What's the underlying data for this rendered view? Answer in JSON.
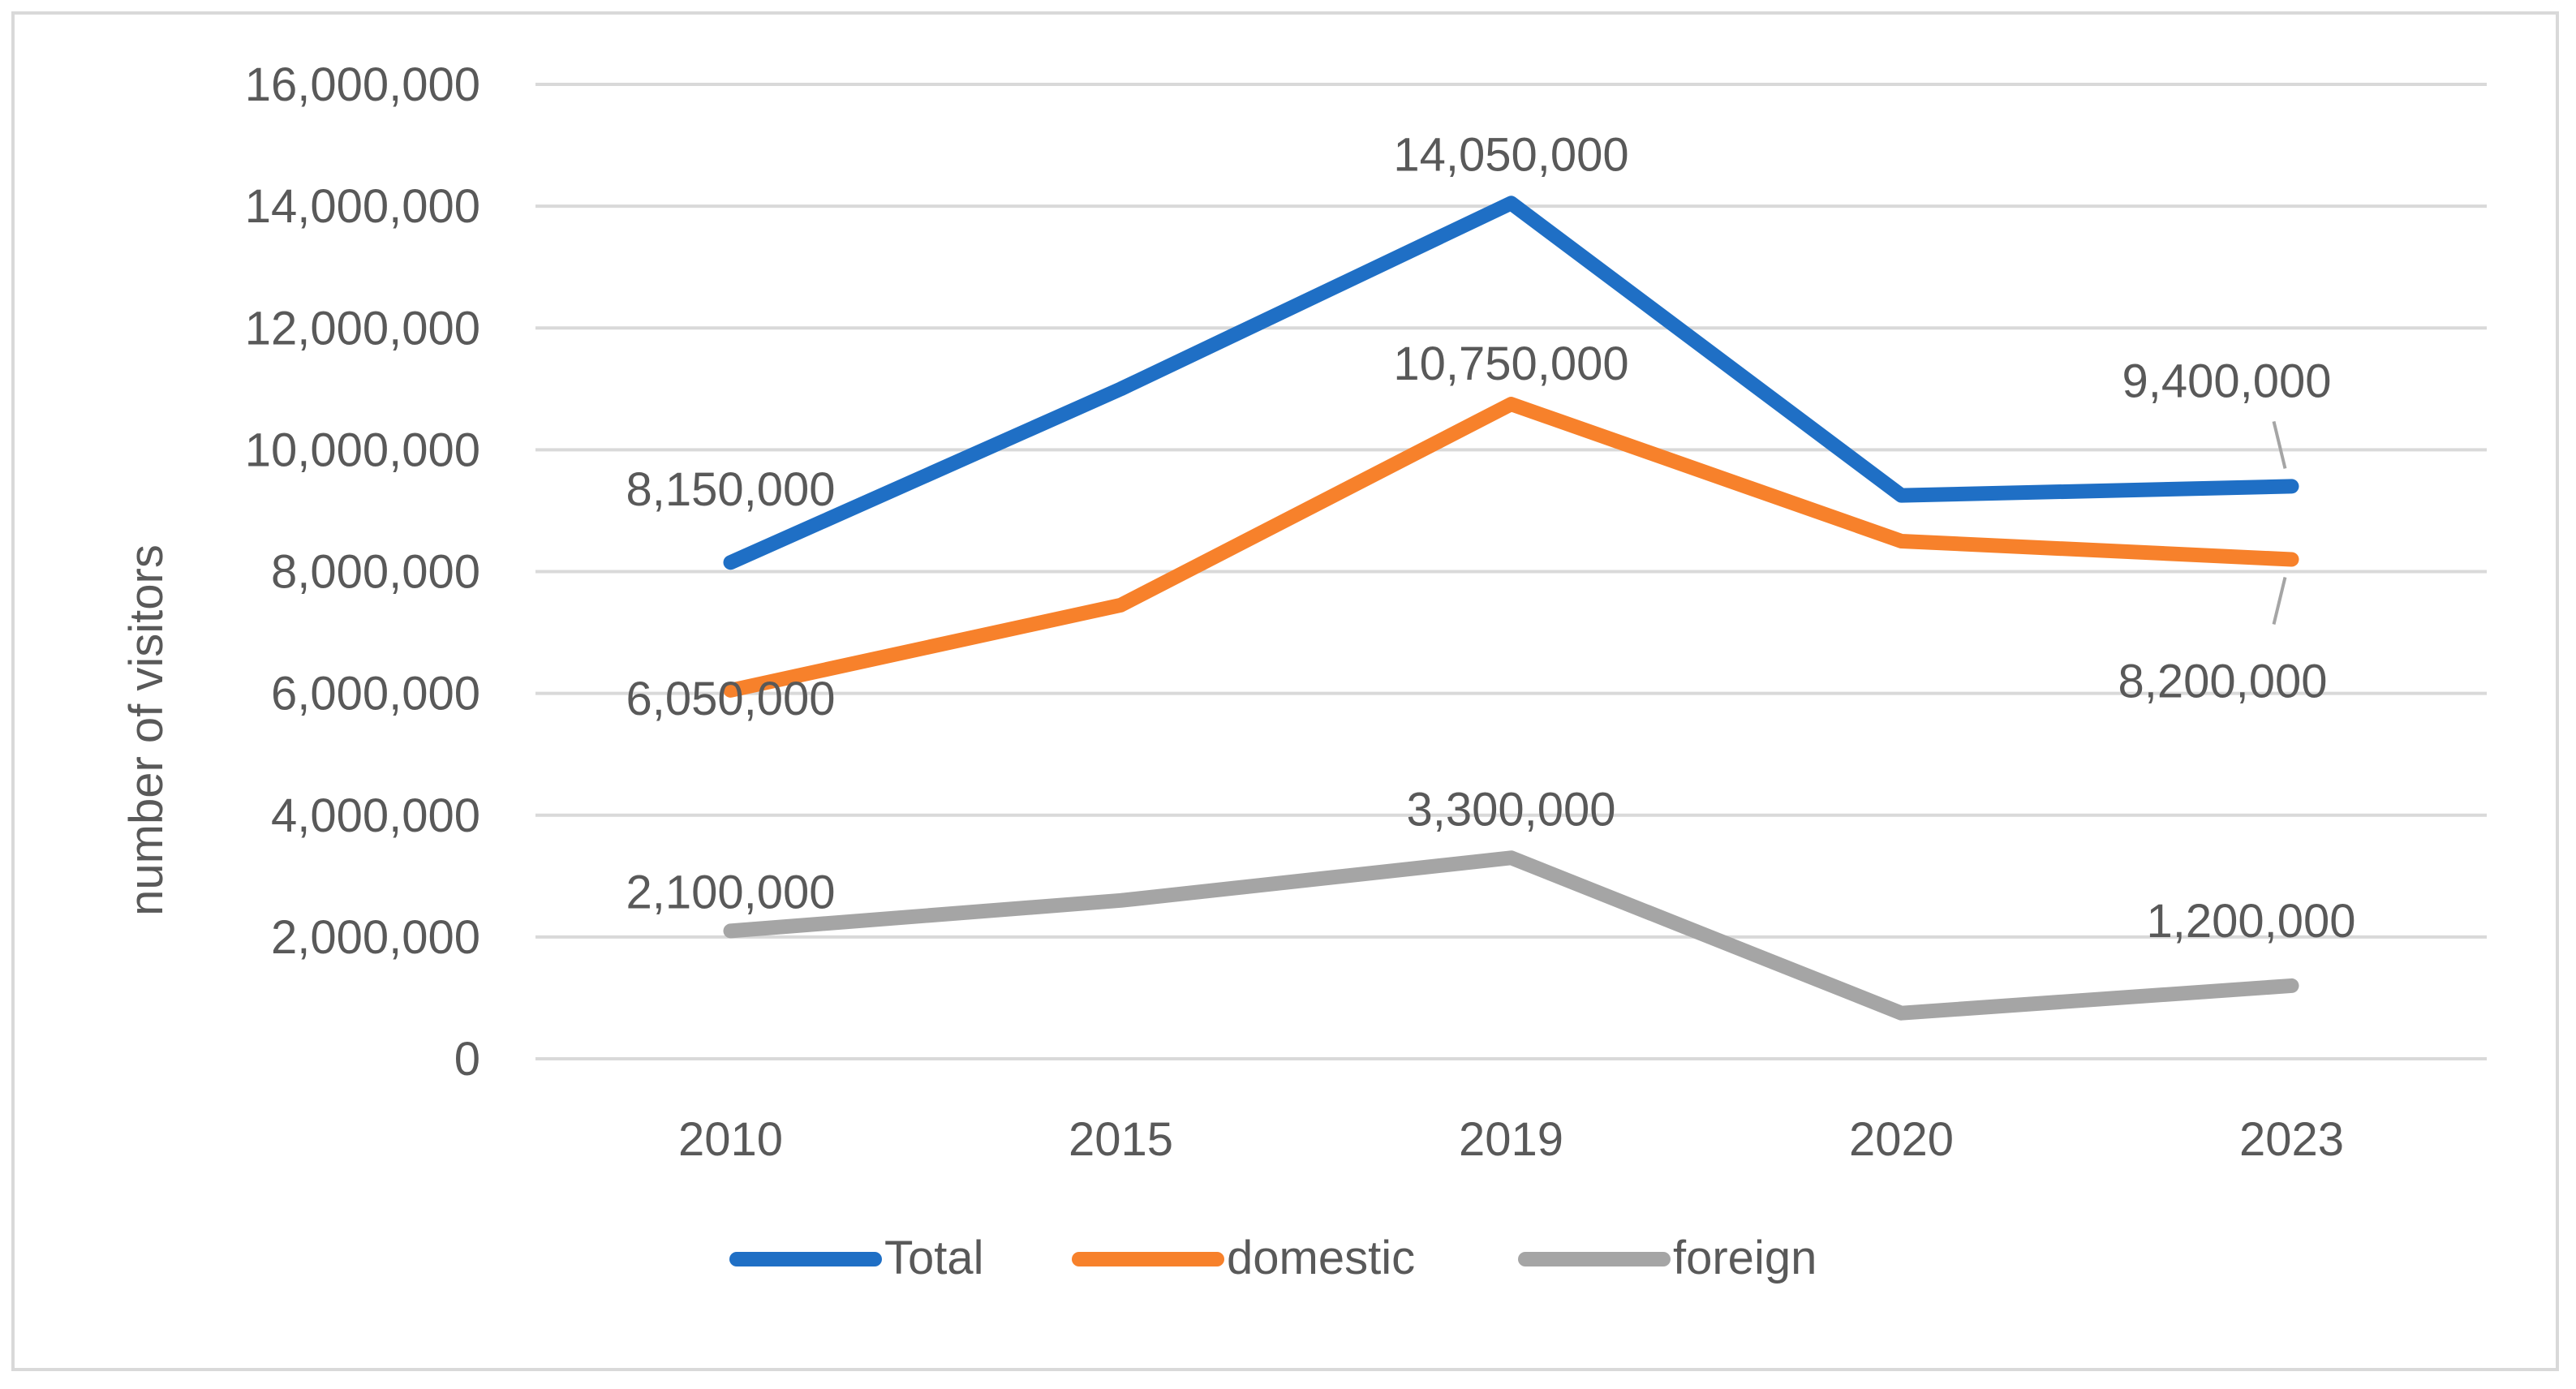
{
  "chart_data": {
    "type": "line",
    "title": "",
    "xlabel": "",
    "ylabel": "number of visitors",
    "categories": [
      "2010",
      "2015",
      "2019",
      "2020",
      "2023"
    ],
    "ylim": [
      0,
      16000000
    ],
    "yticks": [
      "0",
      "2,000,000",
      "4,000,000",
      "6,000,000",
      "8,000,000",
      "10,000,000",
      "12,000,000",
      "14,000,000",
      "16,000,000"
    ],
    "grid": true,
    "legend": "bottom",
    "series": [
      {
        "name": "Total",
        "color": "#1f6fc5",
        "values": [
          8150000,
          11000000,
          14050000,
          9250000,
          9400000
        ],
        "labels": [
          "8,150,000",
          "",
          "14,050,000",
          "",
          "9,400,000"
        ]
      },
      {
        "name": "domestic",
        "color": "#f7812b",
        "values": [
          6050000,
          7450000,
          10750000,
          8500000,
          8200000
        ],
        "labels": [
          "6,050,000",
          "",
          "10,750,000",
          "",
          "8,200,000"
        ]
      },
      {
        "name": "foreign",
        "color": "#a5a5a5",
        "values": [
          2100000,
          2600000,
          3300000,
          750000,
          1200000
        ],
        "labels": [
          "2,100,000",
          "",
          "3,300,000",
          "",
          "1,200,000"
        ]
      }
    ]
  }
}
